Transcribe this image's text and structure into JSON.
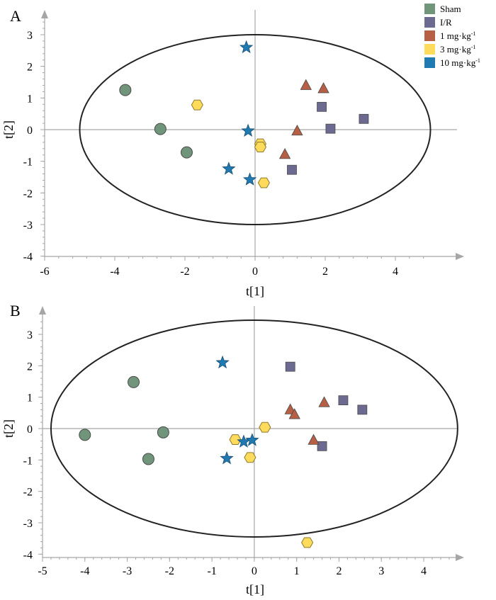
{
  "legend": {
    "items": [
      {
        "key": "sham",
        "label": "Sham",
        "color": "#71957a"
      },
      {
        "key": "ir",
        "label": "I/R",
        "color": "#6c6a91"
      },
      {
        "key": "d1",
        "label": "1 mg·kg",
        "sup": "-1",
        "color": "#b65f45"
      },
      {
        "key": "d3",
        "label": "3 mg·kg",
        "sup": "-1",
        "color": "#ffdb5c"
      },
      {
        "key": "d10",
        "label": "10 mg·kg",
        "sup": "-1",
        "color": "#1f7ab2"
      }
    ]
  },
  "series_style": {
    "sham": {
      "shape": "circle"
    },
    "ir": {
      "shape": "square"
    },
    "d1": {
      "shape": "triangle"
    },
    "d3": {
      "shape": "hexagon"
    },
    "d10": {
      "shape": "star"
    }
  },
  "chart_data": [
    {
      "panel": "A",
      "type": "scatter",
      "xlabel": "t[1]",
      "ylabel": "t[2]",
      "xlim": [
        -6,
        6
      ],
      "ylim": [
        -4,
        4
      ],
      "xticks": [
        -6,
        -4,
        -2,
        0,
        2,
        4
      ],
      "yticks": [
        -4,
        -3,
        -2,
        -1,
        0,
        1,
        2,
        3
      ],
      "ellipse": {
        "cx": 0,
        "cy": 0,
        "rx": 5.0,
        "ry": 3.0
      },
      "series": [
        {
          "key": "sham",
          "name": "Sham",
          "points": [
            [
              -3.7,
              1.25
            ],
            [
              -2.7,
              0.02
            ],
            [
              -1.95,
              -0.72
            ]
          ]
        },
        {
          "key": "ir",
          "name": "I/R",
          "points": [
            [
              1.05,
              -1.27
            ],
            [
              1.9,
              0.72
            ],
            [
              2.15,
              0.03
            ],
            [
              3.1,
              0.34
            ]
          ]
        },
        {
          "key": "d1",
          "name": "1 mg·kg-1",
          "points": [
            [
              0.85,
              -0.78
            ],
            [
              1.2,
              -0.04
            ],
            [
              1.45,
              1.4
            ],
            [
              1.95,
              1.3
            ]
          ]
        },
        {
          "key": "d3",
          "name": "3 mg·kg-1",
          "points": [
            [
              -1.65,
              0.78
            ],
            [
              0.15,
              -0.45
            ],
            [
              0.15,
              -0.55
            ],
            [
              0.25,
              -1.68
            ]
          ]
        },
        {
          "key": "d10",
          "name": "10 mg·kg-1",
          "points": [
            [
              -0.25,
              2.6
            ],
            [
              -0.2,
              -0.04
            ],
            [
              -0.75,
              -1.24
            ],
            [
              -0.15,
              -1.58
            ]
          ]
        }
      ]
    },
    {
      "panel": "B",
      "type": "scatter",
      "xlabel": "t[1]",
      "ylabel": "t[2]",
      "xlim": [
        -5,
        5
      ],
      "ylim": [
        -4,
        4
      ],
      "xticks": [
        -5,
        -4,
        -3,
        -2,
        -1,
        0,
        1,
        2,
        3,
        4
      ],
      "yticks": [
        -4,
        -3,
        -2,
        -1,
        0,
        1,
        2,
        3
      ],
      "ellipse": {
        "cx": 0,
        "cy": 0,
        "rx": 4.8,
        "ry": 3.45
      },
      "series": [
        {
          "key": "sham",
          "name": "Sham",
          "points": [
            [
              -4.0,
              -0.2
            ],
            [
              -2.85,
              1.48
            ],
            [
              -2.5,
              -0.97
            ],
            [
              -2.15,
              -0.12
            ]
          ]
        },
        {
          "key": "ir",
          "name": "I/R",
          "points": [
            [
              0.85,
              1.97
            ],
            [
              1.6,
              -0.56
            ],
            [
              2.1,
              0.9
            ],
            [
              2.55,
              0.6
            ]
          ]
        },
        {
          "key": "d1",
          "name": "1 mg·kg-1",
          "points": [
            [
              0.85,
              0.6
            ],
            [
              0.95,
              0.45
            ],
            [
              1.4,
              -0.37
            ],
            [
              1.65,
              0.83
            ]
          ]
        },
        {
          "key": "d3",
          "name": "3 mg·kg-1",
          "points": [
            [
              -0.45,
              -0.35
            ],
            [
              -0.1,
              -0.92
            ],
            [
              0.25,
              0.04
            ],
            [
              1.25,
              -3.63
            ]
          ]
        },
        {
          "key": "d10",
          "name": "10 mg·kg-1",
          "points": [
            [
              -0.75,
              2.1
            ],
            [
              -0.25,
              -0.42
            ],
            [
              -0.05,
              -0.37
            ],
            [
              -0.65,
              -0.95
            ]
          ]
        }
      ]
    }
  ]
}
